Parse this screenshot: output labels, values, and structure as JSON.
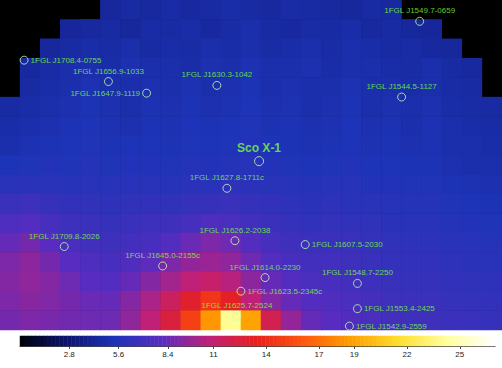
{
  "chart_data": {
    "type": "heatmap",
    "xlim": [
      0,
      25
    ],
    "ylim": [
      0,
      17
    ],
    "tick_labels": false,
    "grid": false,
    "cells": [
      [
        null,
        null,
        null,
        null,
        null,
        4.4,
        4.6,
        4.5,
        4.7,
        4.5,
        4.6,
        4.8,
        4.6,
        4.5,
        4.7,
        4.6,
        4.5,
        4.4,
        4.6,
        4.5,
        null,
        null,
        null,
        null,
        null
      ],
      [
        null,
        null,
        null,
        4.3,
        4.5,
        4.6,
        4.4,
        4.7,
        4.6,
        4.8,
        4.5,
        4.7,
        4.9,
        4.6,
        4.5,
        4.7,
        4.6,
        4.8,
        4.5,
        4.6,
        4.4,
        4.3,
        null,
        null,
        null
      ],
      [
        null,
        null,
        4.4,
        4.6,
        4.8,
        4.7,
        4.9,
        4.6,
        4.8,
        4.7,
        5.0,
        4.8,
        4.9,
        4.7,
        4.8,
        5.0,
        4.7,
        4.9,
        4.8,
        4.6,
        4.7,
        4.5,
        4.4,
        null,
        null
      ],
      [
        null,
        4.5,
        4.7,
        4.9,
        5.0,
        4.8,
        5.1,
        4.9,
        5.0,
        4.8,
        5.1,
        4.9,
        5.2,
        5.0,
        4.9,
        5.1,
        4.8,
        5.0,
        4.9,
        4.8,
        4.7,
        4.9,
        4.6,
        4.5,
        null
      ],
      [
        null,
        4.6,
        4.8,
        5.0,
        5.2,
        5.0,
        4.9,
        5.1,
        5.0,
        5.2,
        5.0,
        5.1,
        5.3,
        5.0,
        5.1,
        4.9,
        5.0,
        5.2,
        4.9,
        5.0,
        4.8,
        5.0,
        4.7,
        4.6,
        null
      ],
      [
        4.6,
        4.8,
        5.0,
        5.1,
        5.3,
        5.1,
        5.0,
        5.2,
        5.1,
        5.3,
        5.1,
        5.2,
        5.4,
        5.1,
        5.2,
        5.0,
        5.1,
        5.3,
        5.0,
        5.1,
        4.9,
        5.1,
        4.8,
        4.7,
        4.6
      ],
      [
        4.8,
        5.0,
        5.1,
        5.3,
        5.4,
        5.2,
        5.1,
        5.3,
        5.2,
        5.4,
        5.3,
        5.4,
        5.5,
        5.2,
        5.3,
        5.1,
        5.2,
        5.4,
        5.1,
        5.2,
        5.0,
        5.2,
        4.9,
        4.8,
        4.7
      ],
      [
        5.0,
        5.2,
        5.3,
        5.4,
        5.5,
        5.3,
        5.4,
        5.4,
        5.3,
        5.5,
        5.4,
        5.5,
        5.6,
        5.4,
        5.3,
        5.2,
        5.3,
        5.4,
        5.2,
        5.3,
        5.1,
        5.2,
        5.0,
        4.9,
        4.8
      ],
      [
        5.4,
        5.5,
        5.6,
        5.5,
        5.7,
        5.5,
        5.6,
        5.6,
        5.5,
        5.7,
        5.6,
        5.7,
        5.8,
        5.6,
        5.5,
        5.4,
        5.5,
        5.6,
        5.4,
        5.4,
        5.3,
        5.3,
        5.1,
        5.0,
        4.9
      ],
      [
        5.9,
        6.0,
        5.9,
        5.8,
        5.9,
        5.8,
        5.9,
        5.9,
        5.8,
        6.0,
        5.9,
        6.1,
        6.0,
        5.9,
        5.8,
        5.7,
        5.8,
        5.8,
        5.6,
        5.6,
        5.5,
        5.5,
        5.3,
        5.2,
        5.1
      ],
      [
        6.6,
        6.8,
        6.5,
        6.3,
        6.2,
        6.1,
        6.2,
        6.3,
        6.2,
        6.4,
        6.5,
        6.6,
        6.4,
        6.3,
        6.1,
        6.0,
        6.1,
        6.0,
        5.9,
        5.8,
        5.7,
        5.7,
        5.5,
        5.4,
        5.3
      ],
      [
        7.5,
        7.8,
        7.2,
        6.8,
        6.6,
        6.5,
        6.6,
        6.8,
        6.9,
        7.2,
        7.6,
        7.4,
        7.0,
        6.7,
        6.5,
        6.3,
        6.4,
        6.3,
        6.2,
        6.0,
        5.9,
        5.9,
        5.7,
        5.6,
        5.5
      ],
      [
        8.4,
        8.8,
        8.0,
        7.4,
        7.0,
        6.9,
        7.0,
        7.3,
        7.8,
        8.5,
        9.0,
        8.6,
        7.8,
        7.2,
        6.9,
        6.7,
        6.7,
        6.6,
        6.4,
        6.2,
        6.1,
        6.1,
        5.9,
        5.8,
        5.7
      ],
      [
        9.0,
        9.4,
        8.8,
        8.0,
        7.5,
        7.3,
        7.6,
        8.2,
        9.0,
        9.6,
        9.8,
        9.5,
        8.6,
        7.8,
        7.3,
        7.0,
        7.0,
        6.9,
        6.6,
        6.4,
        6.3,
        6.3,
        6.1,
        6.0,
        5.9
      ],
      [
        9.2,
        9.5,
        9.2,
        8.6,
        8.0,
        7.8,
        8.4,
        9.2,
        10.0,
        10.8,
        11.2,
        10.6,
        9.4,
        8.4,
        7.8,
        7.4,
        7.3,
        7.1,
        6.8,
        6.6,
        6.5,
        6.5,
        6.3,
        6.2,
        6.1
      ],
      [
        9.0,
        9.3,
        9.1,
        8.8,
        8.5,
        8.4,
        9.2,
        10.2,
        11.5,
        13.0,
        14.5,
        13.2,
        10.8,
        9.2,
        8.4,
        7.8,
        7.6,
        7.4,
        7.1,
        6.9,
        6.7,
        6.7,
        6.5,
        6.4,
        6.3
      ],
      [
        8.8,
        9.0,
        8.9,
        8.7,
        8.6,
        8.6,
        9.5,
        10.8,
        12.5,
        15.0,
        18.5,
        24.0,
        19.0,
        12.0,
        9.6,
        8.4,
        8.0,
        7.7,
        7.4,
        7.1,
        6.9,
        6.9,
        6.7,
        6.6,
        6.5
      ]
    ],
    "colorbar": {
      "range": [
        0,
        27
      ],
      "ticks": [
        2.8,
        5.6,
        8.4,
        11,
        14,
        17,
        19,
        22,
        25
      ]
    },
    "annotations": [
      {
        "label": "Sco X-1",
        "x": 12.9,
        "y": 8.3
      }
    ],
    "sources": [
      {
        "label": "1FGL J1708.4-0755",
        "x": 1.2,
        "y": 3.1
      },
      {
        "label": "1FGL J1656.9-1033",
        "x": 5.4,
        "y": 4.2
      },
      {
        "label": "1FGL J1647.9-1119",
        "x": 7.3,
        "y": 4.8
      },
      {
        "label": "1FGL J1630.3-1042",
        "x": 10.8,
        "y": 4.4
      },
      {
        "label": "1FGL J1544.5-1127",
        "x": 20.0,
        "y": 5.0
      },
      {
        "label": "1FGL J1549.7-0659",
        "x": 20.9,
        "y": 1.1
      },
      {
        "label": "1FGL J1627.8-1711c",
        "x": 11.3,
        "y": 9.7
      },
      {
        "label": "1FGL J1709.8-2026",
        "x": 3.2,
        "y": 12.7
      },
      {
        "label": "1FGL J1626.2-2038",
        "x": 11.7,
        "y": 12.4
      },
      {
        "label": "1FGL J1607.5-2030",
        "x": 15.2,
        "y": 12.6
      },
      {
        "label": "1FGL J1645.0-2155c",
        "x": 8.1,
        "y": 13.7
      },
      {
        "label": "1FGL J1614.0-2230",
        "x": 13.2,
        "y": 14.3
      },
      {
        "label": "1FGL J1548.7-2250",
        "x": 17.8,
        "y": 14.6
      },
      {
        "label": "1FGL J1623.5-2345c",
        "x": 12.0,
        "y": 15.0
      },
      {
        "label": "1FGL J1553.4-2425",
        "x": 17.8,
        "y": 15.9
      },
      {
        "label": "1FGL J1625.7-2524",
        "x": 11.8,
        "y": 16.3
      },
      {
        "label": "1FGL J1542.9-2559",
        "x": 17.4,
        "y": 16.8
      }
    ]
  }
}
